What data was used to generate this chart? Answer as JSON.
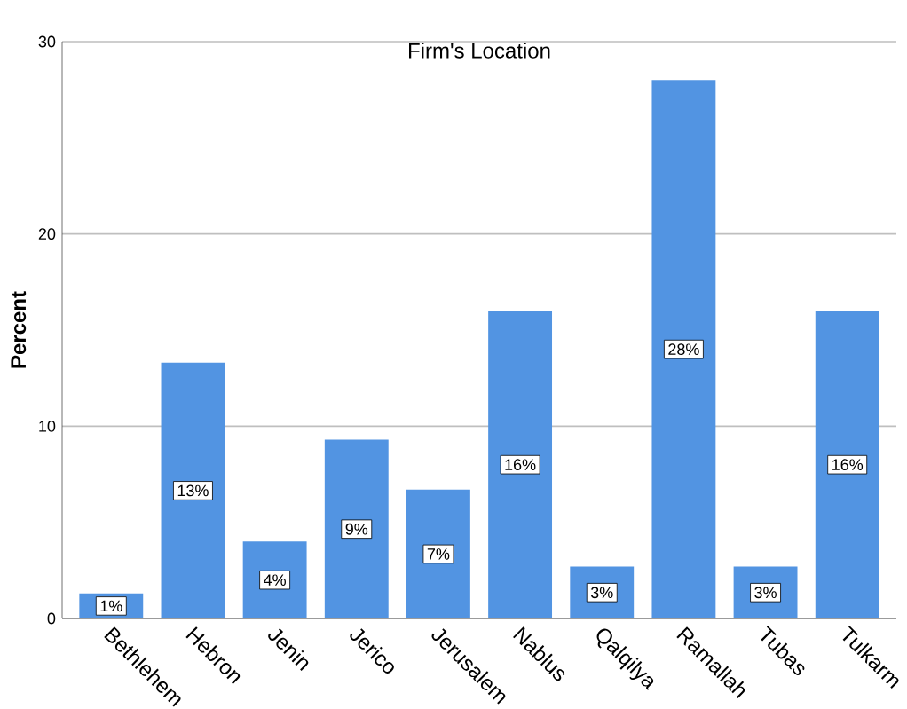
{
  "chart_data": {
    "type": "bar",
    "title": "Firm's Location",
    "ylabel": "Percent",
    "categories": [
      "Bethlehem",
      "Hebron",
      "Jenin",
      "Jerico",
      "Jerusalem",
      "Nablus",
      "Qalqilya",
      "Ramallah",
      "Tubas",
      "Tulkarm"
    ],
    "values": [
      1.3,
      13.3,
      4.0,
      9.3,
      6.7,
      16.0,
      2.7,
      28.0,
      2.7,
      16.0
    ],
    "value_labels": [
      "1%",
      "13%",
      "4%",
      "9%",
      "7%",
      "16%",
      "3%",
      "28%",
      "3%",
      "16%"
    ],
    "color": "#5294e2",
    "ylim": [
      0,
      30
    ],
    "yticks": [
      0,
      10,
      20,
      30
    ],
    "grid": "y"
  }
}
